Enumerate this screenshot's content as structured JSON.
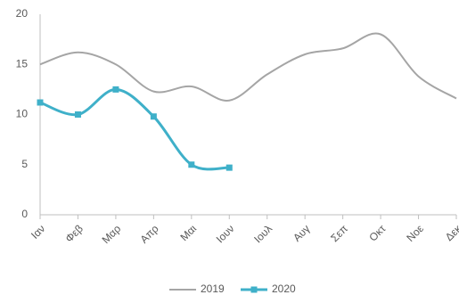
{
  "chart_data": {
    "type": "line",
    "categories": [
      "Ιαν",
      "Φεβ",
      "Μαρ",
      "Απρ",
      "Μαι",
      "Ιουν",
      "Ιουλ",
      "Αυγ",
      "Σεπ",
      "Οκτ",
      "Νοε",
      "Δεκ"
    ],
    "series": [
      {
        "name": "2019",
        "color": "#a5a5a5",
        "markers": false,
        "values": [
          15.0,
          16.2,
          15.0,
          12.3,
          12.8,
          11.4,
          14.0,
          16.0,
          16.6,
          18.0,
          13.8,
          11.6
        ]
      },
      {
        "name": "2020",
        "color": "#3fb0c9",
        "markers": true,
        "values": [
          11.2,
          10.0,
          12.5,
          9.8,
          5.0,
          4.7,
          null,
          null,
          null,
          null,
          null,
          null
        ]
      }
    ],
    "ylim": [
      0,
      20
    ],
    "yticks": [
      0,
      5,
      10,
      15,
      20
    ],
    "grid": false,
    "smooth": true,
    "legend": "bottom"
  }
}
